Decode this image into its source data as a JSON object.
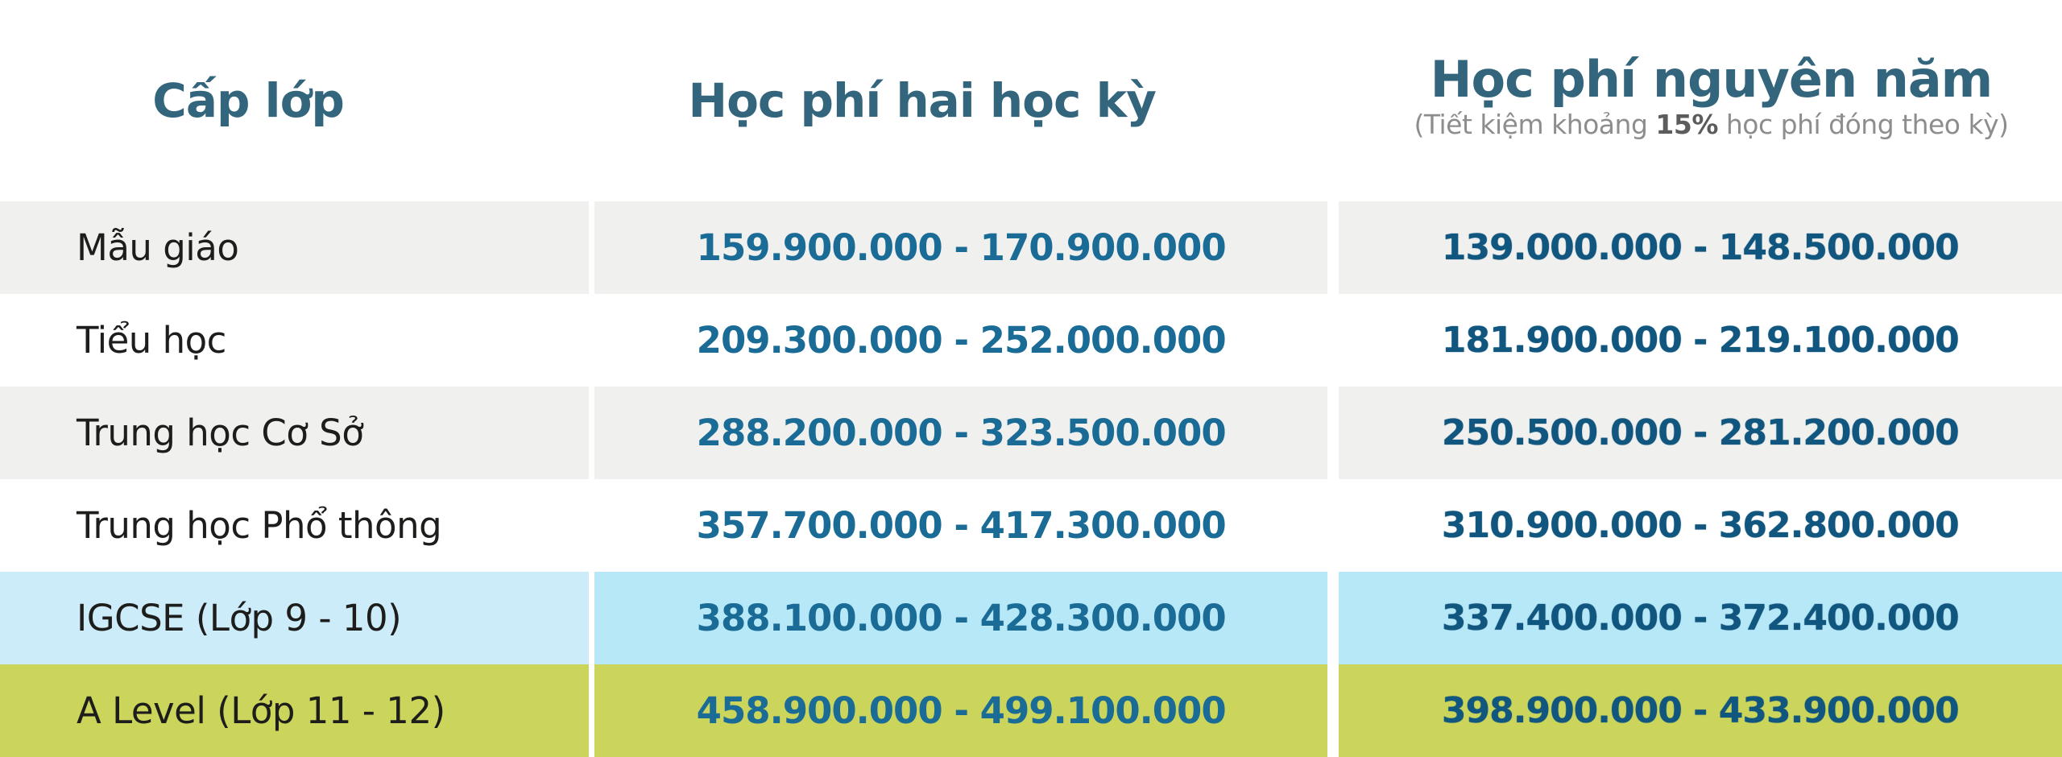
{
  "colors": {
    "header_teal": "#33657d",
    "value_blue": "#1a6c97",
    "value_blue_dark": "#11567e",
    "label_black": "#1d1d1b",
    "note_gray": "#8d8d8d",
    "note_dark_gray": "#5c5c5c",
    "row_gray": "#f0f0ee",
    "row_blue_left": "#cdecf9",
    "row_blue": "#b7e8f8",
    "row_green": "#ccd55b"
  },
  "table": {
    "headers": [
      {
        "label": "Cấp lớp"
      },
      {
        "label": "Học phí hai học kỳ"
      },
      {
        "label": "Học phí nguyên năm",
        "note_prefix": "(Tiết kiệm khoảng ",
        "note_bold": "15%",
        "note_suffix": " học phí đóng theo kỳ)"
      }
    ],
    "rows": [
      {
        "level": "Mẫu giáo",
        "two_semesters": "159.900.000 - 170.900.000",
        "full_year": "139.000.000 - 148.500.000",
        "highlight": "gray"
      },
      {
        "level": "Tiểu học",
        "two_semesters": "209.300.000 - 252.000.000",
        "full_year": "181.900.000 - 219.100.000",
        "highlight": "white"
      },
      {
        "level": "Trung học Cơ Sở",
        "two_semesters": "288.200.000 - 323.500.000",
        "full_year": "250.500.000 - 281.200.000",
        "highlight": "gray"
      },
      {
        "level": "Trung học Phổ thông",
        "two_semesters": "357.700.000 - 417.300.000",
        "full_year": "310.900.000 - 362.800.000",
        "highlight": "white"
      },
      {
        "level": "IGCSE (Lớp 9 - 10)",
        "two_semesters": "388.100.000 - 428.300.000",
        "full_year": "337.400.000 - 372.400.000",
        "highlight": "blue"
      },
      {
        "level": "A Level (Lớp 11 - 12)",
        "two_semesters": "458.900.000 - 499.100.000",
        "full_year": "398.900.000 - 433.900.000",
        "highlight": "green"
      }
    ]
  },
  "chart_data": {
    "type": "table",
    "title": "Học phí theo cấp lớp (VND)",
    "columns": [
      "Cấp lớp",
      "Học phí hai học kỳ",
      "Học phí nguyên năm (Tiết kiệm khoảng 15% học phí đóng theo kỳ)"
    ],
    "rows": [
      [
        "Mẫu giáo",
        "159.900.000 - 170.900.000",
        "139.000.000 - 148.500.000"
      ],
      [
        "Tiểu học",
        "209.300.000 - 252.000.000",
        "181.900.000 - 219.100.000"
      ],
      [
        "Trung học Cơ Sở",
        "288.200.000 - 323.500.000",
        "250.500.000 - 281.200.000"
      ],
      [
        "Trung học Phổ thông",
        "357.700.000 - 417.300.000",
        "310.900.000 - 362.800.000"
      ],
      [
        "IGCSE (Lớp 9 - 10)",
        "388.100.000 - 428.300.000",
        "337.400.000 - 372.400.000"
      ],
      [
        "A Level (Lớp 11 - 12)",
        "458.900.000 - 499.100.000",
        "398.900.000 - 433.900.000"
      ]
    ],
    "row_highlights": [
      "gray",
      "white",
      "gray",
      "white",
      "blue",
      "green"
    ],
    "legend_position": "none",
    "grid": false
  }
}
